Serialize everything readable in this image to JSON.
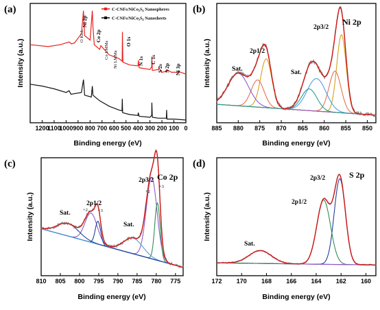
{
  "chart_data": [
    {
      "type": "line",
      "panel": "(a)",
      "xlabel": "Binding energy (eV)",
      "ylabel": "Intensity (a.u.)",
      "xlim": [
        1300,
        0
      ],
      "reversed_x": true,
      "x_ticks": [
        "1200",
        "1100",
        "1000",
        "900",
        "800",
        "700",
        "600",
        "500",
        "400",
        "300",
        "200",
        "100",
        "0"
      ],
      "series": [
        {
          "name": "C-CNFs/NiCo₂S₄ Nanospheres",
          "color": "#e8211d",
          "points": [
            [
              1300,
              0.85
            ],
            [
              1150,
              0.83
            ],
            [
              1050,
              0.85
            ],
            [
              975,
              0.88
            ],
            [
              955,
              0.86
            ],
            [
              930,
              0.87
            ],
            [
              872,
              0.97
            ],
            [
              855,
              1.22
            ],
            [
              845,
              0.95
            ],
            [
              800,
              0.9
            ],
            [
              781,
              1.22
            ],
            [
              776,
              1.05
            ],
            [
              765,
              0.85
            ],
            [
              720,
              0.8
            ],
            [
              710,
              0.84
            ],
            [
              640,
              0.74
            ],
            [
              560,
              0.7
            ],
            [
              532,
              0.67
            ],
            [
              530,
              0.99
            ],
            [
              526,
              0.66
            ],
            [
              470,
              0.63
            ],
            [
              400,
              0.62
            ],
            [
              397,
              0.68
            ],
            [
              390,
              0.6
            ],
            [
              300,
              0.58
            ],
            [
              285,
              0.61
            ],
            [
              284,
              0.72
            ],
            [
              280,
              0.57
            ],
            [
              229,
              0.58
            ],
            [
              225,
              0.6
            ],
            [
              200,
              0.55
            ],
            [
              163,
              0.56
            ],
            [
              160,
              0.58
            ],
            [
              120,
              0.55
            ],
            [
              67,
              0.55
            ],
            [
              64,
              0.56
            ],
            [
              0,
              0.53
            ]
          ]
        },
        {
          "name": "C-CNFs/NiCo₂S₄ Nanosheets",
          "color": "#111111",
          "points": [
            [
              1300,
              0.42
            ],
            [
              1200,
              0.4
            ],
            [
              1100,
              0.37
            ],
            [
              1000,
              0.33
            ],
            [
              975,
              0.35
            ],
            [
              960,
              0.31
            ],
            [
              872,
              0.33
            ],
            [
              855,
              0.47
            ],
            [
              845,
              0.3
            ],
            [
              790,
              0.28
            ],
            [
              781,
              0.4
            ],
            [
              776,
              0.3
            ],
            [
              720,
              0.24
            ],
            [
              640,
              0.18
            ],
            [
              560,
              0.14
            ],
            [
              533,
              0.13
            ],
            [
              531,
              0.26
            ],
            [
              528,
              0.11
            ],
            [
              470,
              0.09
            ],
            [
              400,
              0.08
            ],
            [
              398,
              0.11
            ],
            [
              390,
              0.07
            ],
            [
              300,
              0.06
            ],
            [
              285,
              0.08
            ],
            [
              284,
              0.22
            ],
            [
              280,
              0.06
            ],
            [
              230,
              0.05
            ],
            [
              163,
              0.05
            ],
            [
              161,
              0.14
            ],
            [
              158,
              0.04
            ],
            [
              100,
              0.04
            ],
            [
              0,
              0.03
            ]
          ]
        }
      ],
      "annotations": [
        "O KLL",
        "Ni 2p",
        "Co 2p",
        "Co LMMa",
        "Ni LMMa",
        "O 1s",
        "N 1s",
        "C 1s",
        "S 2s",
        "S 2p",
        "Ni 3p"
      ]
    },
    {
      "type": "line",
      "panel": "(b)",
      "title": "Ni 2p",
      "xlabel": "Binding energy (eV)",
      "ylabel": "Intensity (a.u.)",
      "xlim": [
        885,
        848
      ],
      "reversed_x": true,
      "x_ticks": [
        "885",
        "880",
        "875",
        "870",
        "865",
        "860",
        "855",
        "850"
      ],
      "peak_labels": [
        "Sat.",
        "2p1/2",
        "Sat.",
        "2p3/2"
      ],
      "components": [
        {
          "center": 856.0,
          "height": 0.72,
          "width": 1.1,
          "color": "#d4a017"
        },
        {
          "center": 857.5,
          "height": 0.38,
          "width": 1.4,
          "color": "#e76f51"
        },
        {
          "center": 873.5,
          "height": 0.45,
          "width": 1.3,
          "color": "#d4a017"
        },
        {
          "center": 875.5,
          "height": 0.25,
          "width": 1.5,
          "color": "#e76f51"
        },
        {
          "center": 861.8,
          "height": 0.3,
          "width": 2.2,
          "color": "#4f9dde"
        },
        {
          "center": 880.0,
          "height": 0.3,
          "width": 2.4,
          "color": "#8a5cc9"
        },
        {
          "center": 863.5,
          "height": 0.2,
          "width": 1.8,
          "color": "#2a9d8f"
        }
      ],
      "baseline": [
        885,
        0.12,
        848,
        0.02
      ],
      "baseline_color": "#8b7500"
    },
    {
      "type": "line",
      "panel": "(c)",
      "title": "Co 2p",
      "xlabel": "Binding energy (eV)",
      "ylabel": "Intensity (a.u.)",
      "xlim": [
        810,
        773
      ],
      "reversed_x": true,
      "x_ticks": [
        "810",
        "805",
        "800",
        "795",
        "790",
        "785",
        "780",
        "775"
      ],
      "peak_labels": [
        "Sat.",
        "2p1/2",
        "Sat.",
        "2p3/2",
        "+2",
        "+3",
        "+2",
        "+3"
      ],
      "components": [
        {
          "center": 781.2,
          "height": 0.78,
          "width": 1.4,
          "color": "#8a5cc9"
        },
        {
          "center": 779.7,
          "height": 0.55,
          "width": 0.7,
          "color": "#2e8b57"
        },
        {
          "center": 797.0,
          "height": 0.28,
          "width": 1.6,
          "color": "#8a5cc9"
        },
        {
          "center": 795.2,
          "height": 0.22,
          "width": 0.7,
          "color": "#1f3f9f"
        },
        {
          "center": 786.0,
          "height": 0.15,
          "width": 2.5,
          "color": "#4f9dde"
        },
        {
          "center": 803.0,
          "height": 0.12,
          "width": 2.8,
          "color": "#1f3f9f"
        }
      ],
      "baseline": [
        810,
        0.4,
        773,
        0.03
      ],
      "baseline_color": "#14a0a0"
    },
    {
      "type": "line",
      "panel": "(d)",
      "title": "S 2p",
      "xlabel": "Binding energy (eV)",
      "ylabel": "Intensity (a.u.)",
      "xlim": [
        172,
        159.2
      ],
      "reversed_x": true,
      "x_ticks": [
        "172",
        "170",
        "168",
        "166",
        "164",
        "162",
        "160"
      ],
      "peak_labels": [
        "Sat.",
        "2p1/2",
        "2p3/2"
      ],
      "components": [
        {
          "center": 162.1,
          "height": 0.8,
          "width": 0.45,
          "color": "#1f3f9f"
        },
        {
          "center": 163.4,
          "height": 0.6,
          "width": 0.55,
          "color": "#2e8b57"
        },
        {
          "center": 168.5,
          "height": 0.12,
          "width": 0.9,
          "color": "#8a5cc9"
        }
      ],
      "baseline": [
        172,
        0.07,
        159.2,
        0.05
      ],
      "baseline_color": "#e040b0"
    }
  ]
}
